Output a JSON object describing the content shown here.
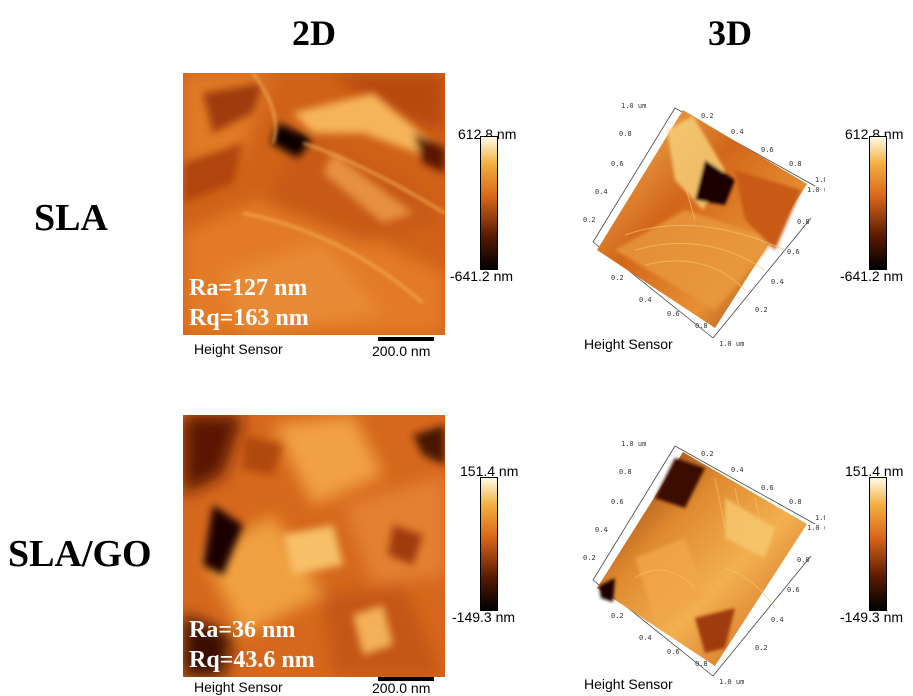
{
  "columns": {
    "left": "2D",
    "right": "3D"
  },
  "rows": [
    {
      "label": "SLA",
      "ra": "Ra=127 nm",
      "rq": "Rq=163 nm",
      "caption_2d": "Height Sensor",
      "scalebar": "200.0 nm",
      "cbar_2d": {
        "max": "612.8 nm",
        "min": "-641.2 nm"
      },
      "caption_3d": "Height Sensor",
      "cbar_3d": {
        "max": "612.8 nm",
        "min": "-641.2 nm"
      },
      "axis3d": {
        "top": "1.0 um",
        "ticks_a": [
          "0.2",
          "0.4",
          "0.6",
          "0.8"
        ],
        "ticks_b": [
          "0.2",
          "0.4",
          "0.6",
          "0.8"
        ],
        "ticks_c": [
          "0.2",
          "0.4",
          "0.6",
          "0.8"
        ],
        "corner_r": "1.0 um",
        "corner_b": "1.0 um",
        "z": "1.0"
      }
    },
    {
      "label": "SLA/GO",
      "ra": "Ra=36 nm",
      "rq": "Rq=43.6 nm",
      "caption_2d": "Height Sensor",
      "scalebar": "200.0 nm",
      "cbar_2d": {
        "max": "151.4 nm",
        "min": "-149.3 nm"
      },
      "caption_3d": "Height Sensor",
      "cbar_3d": {
        "max": "151.4 nm",
        "min": "-149.3 nm"
      },
      "axis3d": {
        "top": "1.0 um",
        "ticks_a": [
          "0.2",
          "0.4",
          "0.6",
          "0.8"
        ],
        "ticks_b": [
          "0.2",
          "0.4",
          "0.6",
          "0.8"
        ],
        "ticks_c": [
          "0.2",
          "0.4",
          "0.6",
          "0.8"
        ],
        "corner_r": "1.0 um",
        "corner_b": "1.0 um",
        "z": "1.0"
      }
    }
  ],
  "colors": {
    "afm_dark": "#1a0500",
    "afm_mid": "#d9661a",
    "afm_light": "#ffe9a8"
  }
}
